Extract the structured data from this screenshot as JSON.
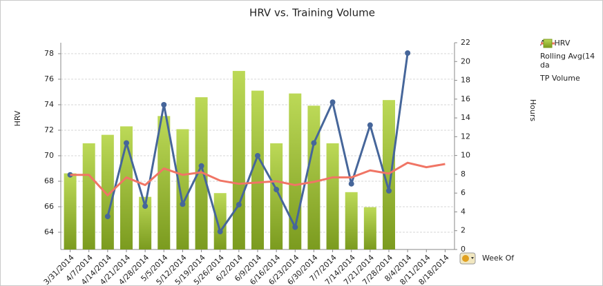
{
  "chart_data": {
    "type": "combo",
    "title": "HRV vs. Training Volume",
    "y_label": "HRV",
    "y2_label": "Hours",
    "x_label": "Week Of",
    "categories": [
      "3/31/2014",
      "4/7/2014",
      "4/14/2014",
      "4/21/2014",
      "4/28/2014",
      "5/5/2014",
      "5/12/2014",
      "5/19/2014",
      "5/26/2014",
      "6/2/2014",
      "6/9/2014",
      "6/16/2014",
      "6/23/2014",
      "6/30/2014",
      "7/7/2014",
      "7/14/2014",
      "7/21/2014",
      "7/28/2014",
      "8/4/2014",
      "8/11/2014",
      "8/18/2014"
    ],
    "ylim": [
      62.65,
      78.86
    ],
    "yticks": [
      64,
      66,
      68,
      70,
      72,
      74,
      76,
      78
    ],
    "y2lim": [
      0,
      22
    ],
    "y2ticks": [
      0,
      2,
      4,
      6,
      8,
      10,
      12,
      14,
      16,
      18,
      20,
      22
    ],
    "grid": true,
    "series": [
      {
        "name": "AM HRV",
        "type": "line",
        "markers": true,
        "color": "#46669a",
        "values": [
          68.5,
          null,
          65.24,
          71.0,
          66.05,
          74.0,
          66.2,
          69.2,
          64.05,
          66.16,
          70.0,
          67.35,
          64.4,
          71.0,
          74.2,
          67.8,
          72.4,
          67.25,
          78.05,
          null,
          null
        ]
      },
      {
        "name": "Rolling Avg(14 da",
        "type": "line",
        "markers": false,
        "color": "#f07565",
        "values": [
          68.5,
          68.5,
          66.9,
          68.3,
          67.7,
          69.0,
          68.5,
          68.7,
          68.05,
          67.8,
          67.9,
          68.0,
          67.7,
          67.95,
          68.3,
          68.3,
          68.85,
          68.6,
          69.45,
          69.1,
          69.35
        ]
      },
      {
        "name": "TP Volume",
        "type": "bar",
        "axis": "y2",
        "color": "#9bbb34",
        "values": [
          8.1,
          11.3,
          12.2,
          13.1,
          5.6,
          14.2,
          12.8,
          16.2,
          6.0,
          19.0,
          16.9,
          11.3,
          16.6,
          15.3,
          11.3,
          6.1,
          4.5,
          15.9,
          null,
          null,
          null
        ]
      }
    ]
  }
}
